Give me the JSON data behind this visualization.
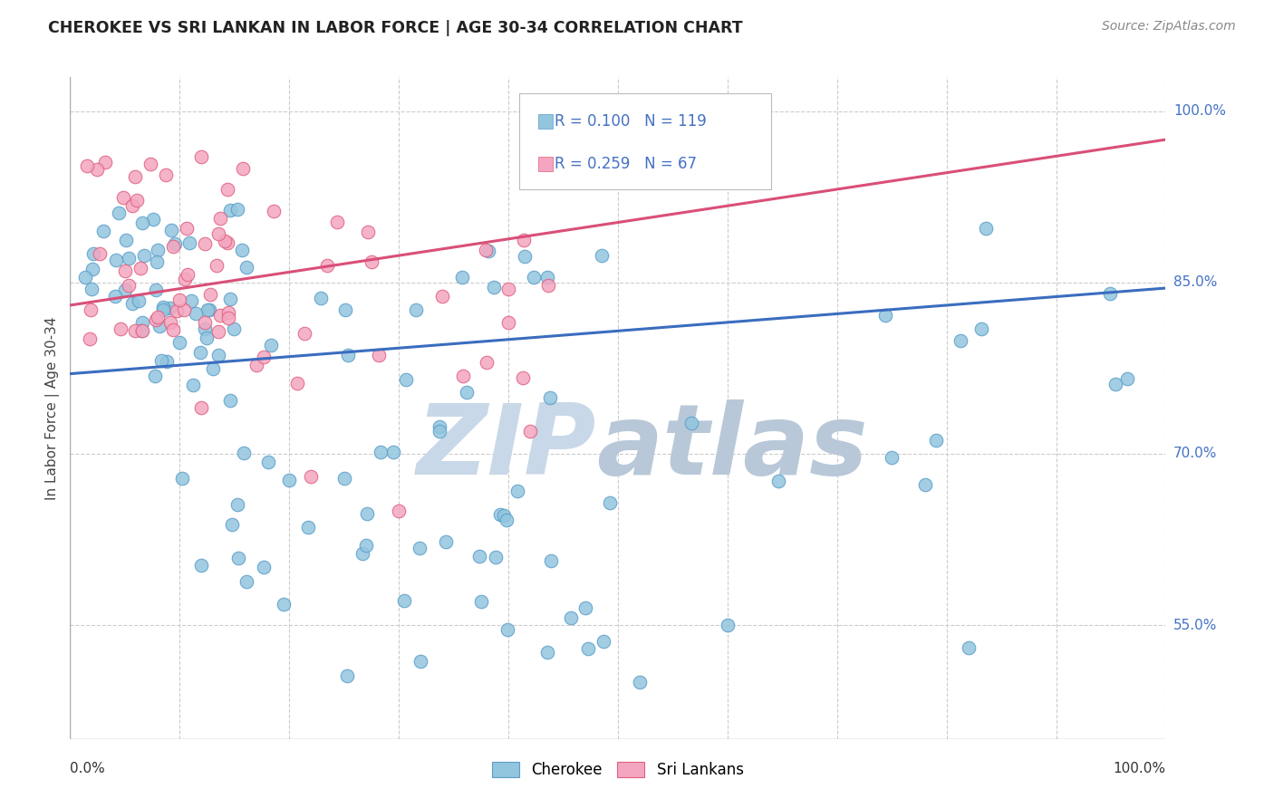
{
  "title": "CHEROKEE VS SRI LANKAN IN LABOR FORCE | AGE 30-34 CORRELATION CHART",
  "source": "Source: ZipAtlas.com",
  "ylabel": "In Labor Force | Age 30-34",
  "cherokee_R": 0.1,
  "cherokee_N": 119,
  "srilanka_R": 0.259,
  "srilanka_N": 67,
  "cherokee_color": "#92c5de",
  "cherokee_edge_color": "#5b9ec9",
  "srilanka_color": "#f4a6c0",
  "srilanka_edge_color": "#e0607e",
  "cherokee_line_color": "#3a6dbf",
  "srilanka_line_color": "#d94f78",
  "background_color": "#ffffff",
  "grid_color": "#cccccc",
  "right_label_color": "#4472C4",
  "title_color": "#222222",
  "source_color": "#888888",
  "ylabel_color": "#444444",
  "ylim_min": 0.45,
  "ylim_max": 1.03,
  "xlim_min": 0.0,
  "xlim_max": 1.0,
  "ytick_vals": [
    0.55,
    0.7,
    0.85,
    1.0
  ],
  "ytick_labels": [
    "55.0%",
    "70.0%",
    "85.0%",
    "100.0%"
  ],
  "num_vert_grid": 11,
  "cherokee_line_start_y": 0.77,
  "cherokee_line_end_y": 0.845,
  "srilanka_line_start_y": 0.83,
  "srilanka_line_end_y": 0.975,
  "watermark_zip_color": "#c8d8e8",
  "watermark_atlas_color": "#b8c8d8"
}
